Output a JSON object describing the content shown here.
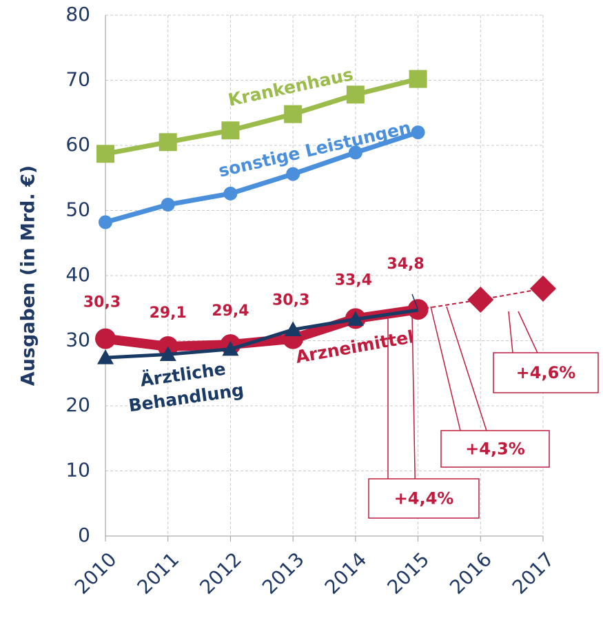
{
  "chart_data": {
    "type": "line",
    "y_label": "Ausgaben (in Mrd. €)",
    "categories": [
      "2010",
      "2011",
      "2012",
      "2013",
      "2014",
      "2015",
      "2016",
      "2017"
    ],
    "ylim": [
      0,
      80
    ],
    "yticks": [
      0,
      10,
      20,
      30,
      40,
      50,
      60,
      70,
      80
    ],
    "grid": true,
    "series": [
      {
        "name": "Krankenhaus",
        "color": "#9bbb4a",
        "marker": "square",
        "values": [
          58.7,
          60.5,
          62.3,
          64.8,
          67.8,
          70.2,
          null,
          null
        ]
      },
      {
        "name": "sonstige Leistungen",
        "color": "#4a8fdc",
        "marker": "circle",
        "values": [
          48.2,
          50.9,
          52.6,
          55.6,
          58.9,
          62.0,
          null,
          null
        ]
      },
      {
        "name": "Arzneimittel",
        "color": "#c01a3c",
        "marker": "circle",
        "values": [
          30.3,
          29.1,
          29.4,
          30.3,
          33.4,
          34.8,
          null,
          null
        ],
        "value_labels": [
          "30,3",
          "29,1",
          "29,4",
          "30,3",
          "33,4",
          "34,8",
          null,
          null
        ]
      },
      {
        "color": "#c01a3c",
        "marker": "diamond",
        "dashed": true,
        "values": [
          null,
          null,
          null,
          null,
          null,
          34.8,
          36.3,
          38.0
        ]
      },
      {
        "name": "Ärztliche Behandlung",
        "color": "#1a3a66",
        "marker": "triangle",
        "values": [
          27.4,
          27.9,
          28.7,
          31.7,
          33.3,
          34.7,
          null,
          null
        ]
      }
    ],
    "annotations": [
      "+4,4%",
      "+4,3%",
      "+4,6%"
    ]
  }
}
